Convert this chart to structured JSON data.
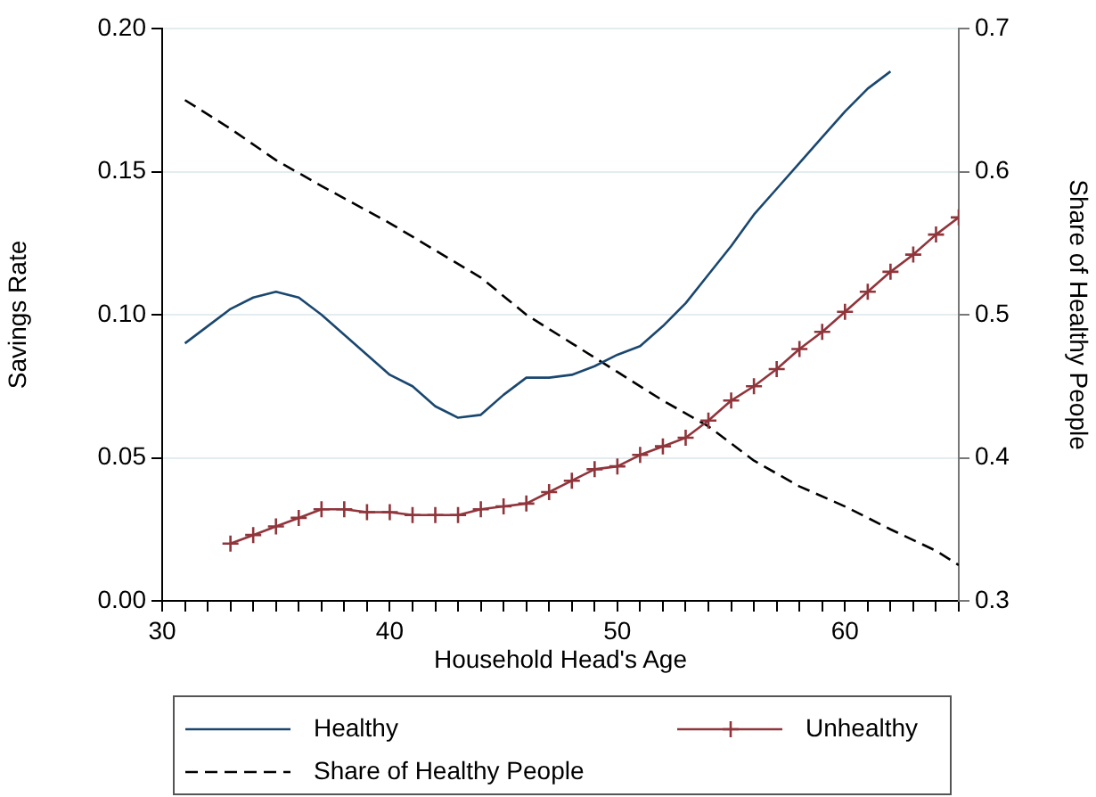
{
  "chart_data": {
    "type": "line",
    "xlabel": "Household Head's Age",
    "ylabel": "Savings Rate",
    "y2label": "Share of Healthy People",
    "xlim": [
      30,
      65
    ],
    "xticks": [
      30,
      {
        "value": 31,
        "label": null
      },
      {
        "value": 32,
        "label": null
      },
      {
        "value": 33,
        "label": null
      },
      {
        "value": 34,
        "label": null
      },
      {
        "value": 35,
        "label": null
      },
      {
        "value": 36,
        "label": null
      },
      {
        "value": 37,
        "label": null
      },
      {
        "value": 38,
        "label": null
      },
      {
        "value": 39,
        "label": null
      },
      40,
      {
        "value": 41,
        "label": null
      },
      {
        "value": 42,
        "label": null
      },
      {
        "value": 43,
        "label": null
      },
      {
        "value": 44,
        "label": null
      },
      {
        "value": 45,
        "label": null
      },
      {
        "value": 46,
        "label": null
      },
      {
        "value": 47,
        "label": null
      },
      {
        "value": 48,
        "label": null
      },
      {
        "value": 49,
        "label": null
      },
      50,
      {
        "value": 51,
        "label": null
      },
      {
        "value": 52,
        "label": null
      },
      {
        "value": 53,
        "label": null
      },
      {
        "value": 54,
        "label": null
      },
      {
        "value": 55,
        "label": null
      },
      {
        "value": 56,
        "label": null
      },
      {
        "value": 57,
        "label": null
      },
      {
        "value": 58,
        "label": null
      },
      {
        "value": 59,
        "label": null
      },
      60,
      {
        "value": 61,
        "label": null
      },
      {
        "value": 62,
        "label": null
      },
      {
        "value": 63,
        "label": null
      },
      {
        "value": 64,
        "label": null
      },
      {
        "value": 65,
        "label": null
      }
    ],
    "ylim": [
      0,
      0.2
    ],
    "yticks": [
      {
        "value": 0,
        "label": "0.00"
      },
      0.05,
      {
        "value": 0.1,
        "label": "0.10"
      },
      0.15,
      {
        "value": 0.2,
        "label": "0.20"
      }
    ],
    "y2lim": [
      0.3,
      0.7
    ],
    "y2ticks": [
      0.3,
      0.4,
      0.5,
      0.6,
      0.7
    ],
    "grid": "y",
    "legend": "bottom",
    "series": [
      {
        "name": "Healthy",
        "color": "#1a476f",
        "marker": "none",
        "line_style": "solid",
        "x": [
          31,
          32,
          33,
          34,
          35,
          36,
          37,
          38,
          39,
          40,
          41,
          42,
          43,
          44,
          45,
          46,
          47,
          48,
          49,
          50,
          51,
          52,
          53,
          54,
          55,
          56,
          57,
          58,
          59,
          60,
          61,
          62
        ],
        "values": [
          0.09,
          0.096,
          0.102,
          0.106,
          0.108,
          0.106,
          0.1,
          0.093,
          0.086,
          0.079,
          0.075,
          0.068,
          0.064,
          0.065,
          0.072,
          0.078,
          0.078,
          0.079,
          0.082,
          0.086,
          0.089,
          0.096,
          0.104,
          0.114,
          0.124,
          0.135,
          0.144,
          0.153,
          0.162,
          0.171,
          0.179,
          0.185
        ]
      },
      {
        "name": "Unhealthy",
        "color": "#90353b",
        "marker": "cross",
        "line_style": "solid",
        "x": [
          33,
          34,
          35,
          36,
          37,
          38,
          39,
          40,
          41,
          42,
          43,
          44,
          45,
          46,
          47,
          48,
          49,
          50,
          51,
          52,
          53,
          54,
          55,
          56,
          57,
          58,
          59,
          60,
          61,
          62,
          63,
          64,
          65
        ],
        "values": [
          0.02,
          0.023,
          0.026,
          0.029,
          0.032,
          0.032,
          0.031,
          0.031,
          0.03,
          0.03,
          0.03,
          0.032,
          0.033,
          0.034,
          0.038,
          0.042,
          0.046,
          0.047,
          0.051,
          0.054,
          0.057,
          0.063,
          0.07,
          0.075,
          0.081,
          0.088,
          0.094,
          0.101,
          0.108,
          0.115,
          0.121,
          0.128,
          0.134
        ]
      },
      {
        "name": "Share of Healthy People",
        "color": "#000000",
        "marker": "none",
        "line_style": "dashed",
        "axis": "y2",
        "x": [
          31,
          33,
          35,
          37,
          40,
          42,
          44,
          46,
          48,
          50,
          52,
          54,
          56,
          58,
          60,
          62,
          64,
          65
        ],
        "values": [
          0.65,
          0.63,
          0.608,
          0.59,
          0.564,
          0.545,
          0.526,
          0.5,
          0.48,
          0.46,
          0.44,
          0.422,
          0.398,
          0.38,
          0.366,
          0.35,
          0.335,
          0.325
        ]
      }
    ]
  }
}
